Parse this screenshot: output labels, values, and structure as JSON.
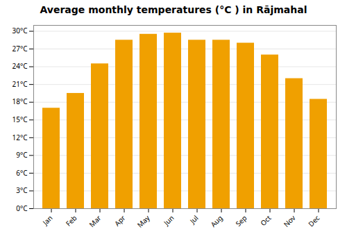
{
  "chart_data": {
    "type": "bar",
    "title": "Average monthly temperatures (°C ) in Rājmahal",
    "categories": [
      "Jan",
      "Feb",
      "Mar",
      "Apr",
      "May",
      "Jun",
      "Jul",
      "Aug",
      "Sep",
      "Oct",
      "Nov",
      "Dec"
    ],
    "values": [
      17,
      19.5,
      24.5,
      28.5,
      29.5,
      29.7,
      28.5,
      28.5,
      28,
      26,
      22,
      18.5
    ],
    "color": "#F0A000",
    "ylim": [
      0,
      31
    ],
    "yticks": [
      {
        "value": 0,
        "label": "0°C"
      },
      {
        "value": 3,
        "label": "3°C"
      },
      {
        "value": 6,
        "label": "6°C"
      },
      {
        "value": 9,
        "label": "9°C"
      },
      {
        "value": 12,
        "label": "12°C"
      },
      {
        "value": 15,
        "label": "15°C"
      },
      {
        "value": 18,
        "label": "18°C"
      },
      {
        "value": 21,
        "label": "21°C"
      },
      {
        "value": 24,
        "label": "24°C"
      },
      {
        "value": 27,
        "label": "27°C"
      },
      {
        "value": 30,
        "label": "30°C"
      }
    ],
    "grid": true
  }
}
